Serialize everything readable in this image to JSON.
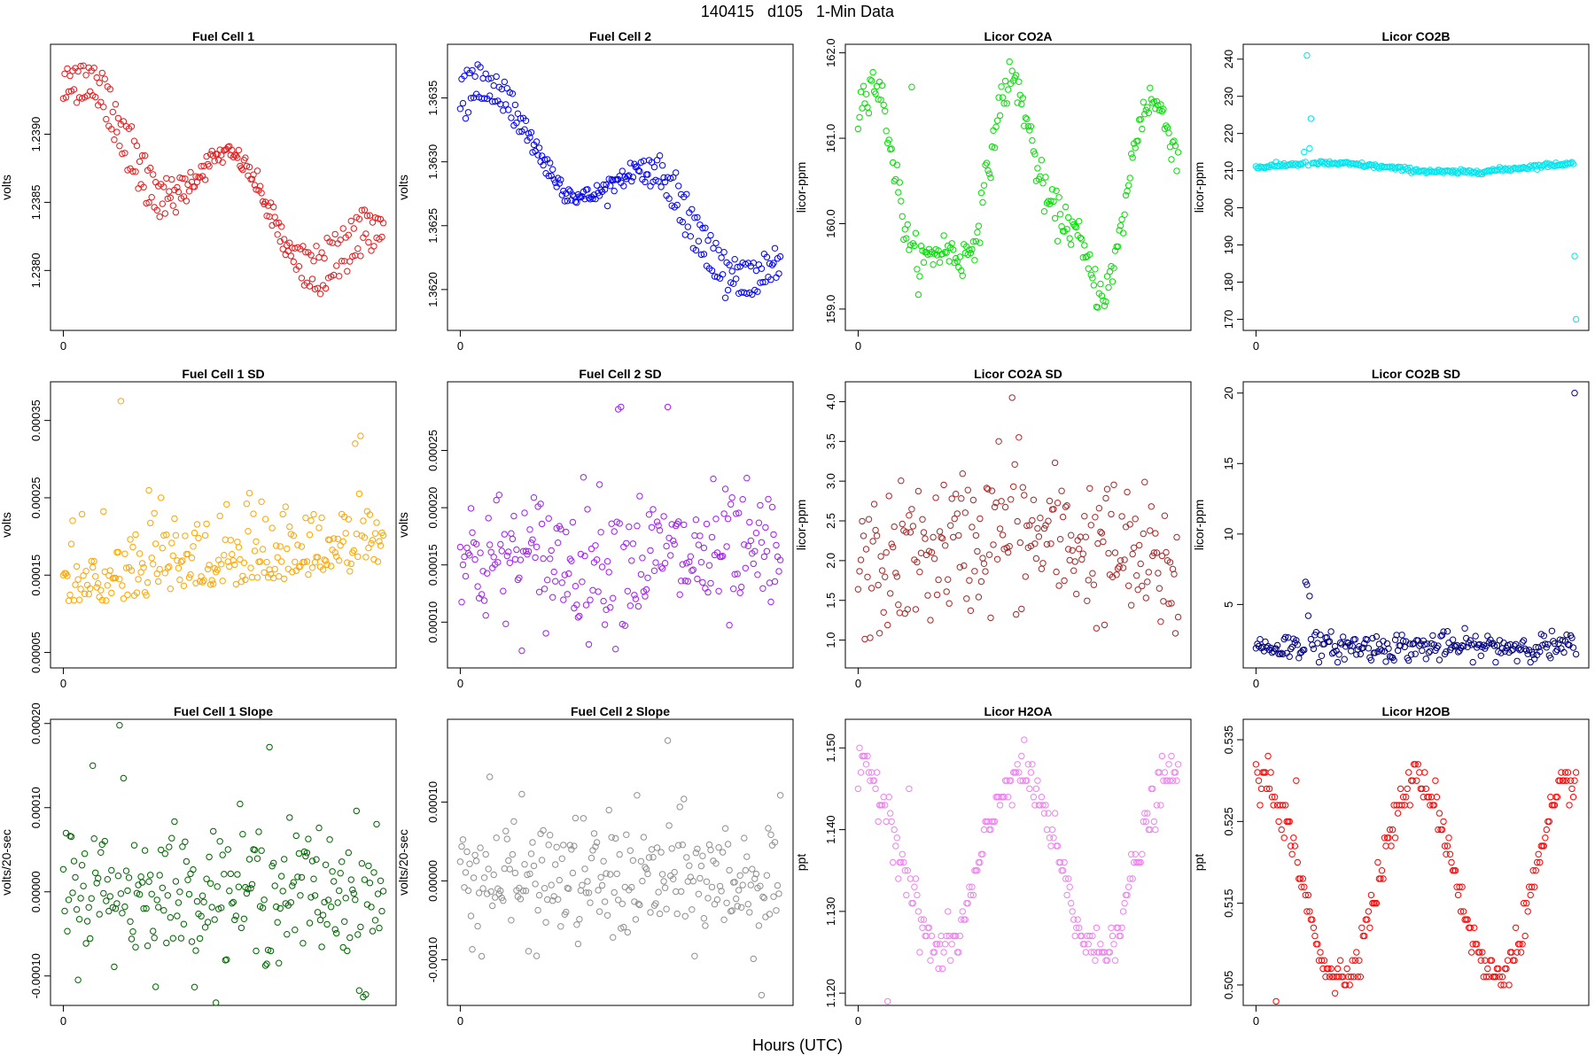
{
  "figure": {
    "title": "140415   d105   1-Min Data",
    "xlabel": "Hours (UTC)"
  },
  "chart_data": [
    {
      "type": "scatter",
      "title": "Fuel Cell 1",
      "ylabel": "volts",
      "color": "#e41a1c",
      "ylim": [
        1.23756,
        1.23966
      ],
      "yticks": [
        1.238,
        1.2385,
        1.239
      ],
      "ytick_labels": [
        "1.2380",
        "1.2385",
        "1.2390"
      ],
      "xlim": [
        -0.04,
        1.04
      ],
      "xticks": [
        0
      ],
      "xtick_labels": [
        "0"
      ],
      "n": 240,
      "pattern": "fc1"
    },
    {
      "type": "scatter",
      "title": "Fuel Cell 2",
      "ylabel": "volts",
      "color": "#0000ff",
      "ylim": [
        1.36168,
        1.36392
      ],
      "yticks": [
        1.362,
        1.3625,
        1.363,
        1.3635
      ],
      "ytick_labels": [
        "1.3620",
        "1.3625",
        "1.3630",
        "1.3635"
      ],
      "xlim": [
        -0.04,
        1.04
      ],
      "xticks": [
        0
      ],
      "xtick_labels": [
        "0"
      ],
      "n": 240,
      "pattern": "fc2"
    },
    {
      "type": "scatter",
      "title": "Licor CO2A",
      "ylabel": "licor-ppm",
      "color": "#00e000",
      "ylim": [
        158.75,
        162.1
      ],
      "yticks": [
        159.0,
        160.0,
        161.0,
        162.0
      ],
      "ytick_labels": [
        "159.0",
        "160.0",
        "161.0",
        "162.0"
      ],
      "xlim": [
        -0.04,
        1.04
      ],
      "xticks": [
        0
      ],
      "xtick_labels": [
        "0"
      ],
      "n": 240,
      "pattern": "co2a"
    },
    {
      "type": "scatter",
      "title": "Licor CO2B",
      "ylabel": "licor-ppm",
      "color": "#00e5ee",
      "ylim": [
        167,
        244
      ],
      "yticks": [
        170,
        180,
        190,
        200,
        210,
        220,
        230,
        240
      ],
      "ytick_labels": [
        "170",
        "180",
        "190",
        "200",
        "210",
        "220",
        "230",
        "240"
      ],
      "xlim": [
        -0.04,
        1.04
      ],
      "xticks": [
        0
      ],
      "xtick_labels": [
        "0"
      ],
      "n": 240,
      "pattern": "co2b"
    },
    {
      "type": "scatter",
      "title": "Fuel Cell 1 SD",
      "ylabel": "volts",
      "color": "#ffa500",
      "ylim": [
        3e-05,
        0.0004
      ],
      "yticks": [
        5e-05,
        0.00015,
        0.00025,
        0.00035
      ],
      "ytick_labels": [
        "0.00005",
        "0.00015",
        "0.00025",
        "0.00035"
      ],
      "xlim": [
        -0.04,
        1.04
      ],
      "xticks": [
        0
      ],
      "xtick_labels": [
        "0"
      ],
      "n": 240,
      "pattern": "fc1sd"
    },
    {
      "type": "scatter",
      "title": "Fuel Cell 2 SD",
      "ylabel": "volts",
      "color": "#a020f0",
      "ylim": [
        6e-05,
        0.00031
      ],
      "yticks": [
        0.0001,
        0.00015,
        0.0002,
        0.00025
      ],
      "ytick_labels": [
        "0.00010",
        "0.00015",
        "0.00020",
        "0.00025"
      ],
      "xlim": [
        -0.04,
        1.04
      ],
      "xticks": [
        0
      ],
      "xtick_labels": [
        "0"
      ],
      "n": 240,
      "pattern": "fc2sd"
    },
    {
      "type": "scatter",
      "title": "Licor CO2A SD",
      "ylabel": "licor-ppm",
      "color": "#a52a2a",
      "ylim": [
        0.65,
        4.25
      ],
      "yticks": [
        1.0,
        1.5,
        2.0,
        2.5,
        3.0,
        3.5,
        4.0
      ],
      "ytick_labels": [
        "1.0",
        "1.5",
        "2.0",
        "2.5",
        "3.0",
        "3.5",
        "4.0"
      ],
      "xlim": [
        -0.04,
        1.04
      ],
      "xticks": [
        0
      ],
      "xtick_labels": [
        "0"
      ],
      "n": 240,
      "pattern": "co2asd"
    },
    {
      "type": "scatter",
      "title": "Licor CO2B SD",
      "ylabel": "licor-ppm",
      "color": "#000080",
      "ylim": [
        0.5,
        20.8
      ],
      "yticks": [
        5,
        10,
        15,
        20
      ],
      "ytick_labels": [
        "5",
        "10",
        "15",
        "20"
      ],
      "xlim": [
        -0.04,
        1.04
      ],
      "xticks": [
        0
      ],
      "xtick_labels": [
        "0"
      ],
      "n": 240,
      "pattern": "co2bsd"
    },
    {
      "type": "scatter",
      "title": "Fuel Cell 1 Slope",
      "ylabel": "volts/20-sec",
      "color": "#006400",
      "ylim": [
        -0.000135,
        0.000205
      ],
      "yticks": [
        -0.0001,
        0.0,
        0.0001,
        0.0002
      ],
      "ytick_labels": [
        "-0.00010",
        "0.00000",
        "0.00010",
        "0.00020"
      ],
      "xlim": [
        -0.04,
        1.04
      ],
      "xticks": [
        0
      ],
      "xtick_labels": [
        "0"
      ],
      "n": 240,
      "pattern": "fc1slope"
    },
    {
      "type": "scatter",
      "title": "Fuel Cell 2 Slope",
      "ylabel": "volts/20-sec",
      "color": "#909090",
      "ylim": [
        -0.000158,
        0.000205
      ],
      "yticks": [
        -0.0001,
        0.0,
        0.0001
      ],
      "ytick_labels": [
        "-0.00010",
        "0.00000",
        "0.00010"
      ],
      "xlim": [
        -0.04,
        1.04
      ],
      "xticks": [
        0
      ],
      "xtick_labels": [
        "0"
      ],
      "n": 240,
      "pattern": "fc2slope"
    },
    {
      "type": "scatter",
      "title": "Licor H2OA",
      "ylabel": "ppt",
      "color": "#ee82ee",
      "ylim": [
        1.1185,
        1.1535
      ],
      "yticks": [
        1.12,
        1.13,
        1.14,
        1.15
      ],
      "ytick_labels": [
        "1.120",
        "1.130",
        "1.140",
        "1.150"
      ],
      "xlim": [
        -0.04,
        1.04
      ],
      "xticks": [
        0
      ],
      "xtick_labels": [
        "0"
      ],
      "n": 240,
      "pattern": "h2oa"
    },
    {
      "type": "scatter",
      "title": "Licor H2OB",
      "ylabel": "ppt",
      "color": "#ff0000",
      "ylim": [
        0.5025,
        0.5375
      ],
      "yticks": [
        0.505,
        0.515,
        0.525,
        0.535
      ],
      "ytick_labels": [
        "0.505",
        "0.515",
        "0.525",
        "0.535"
      ],
      "xlim": [
        -0.04,
        1.04
      ],
      "xticks": [
        0
      ],
      "xtick_labels": [
        "0"
      ],
      "n": 240,
      "pattern": "h2ob"
    }
  ]
}
